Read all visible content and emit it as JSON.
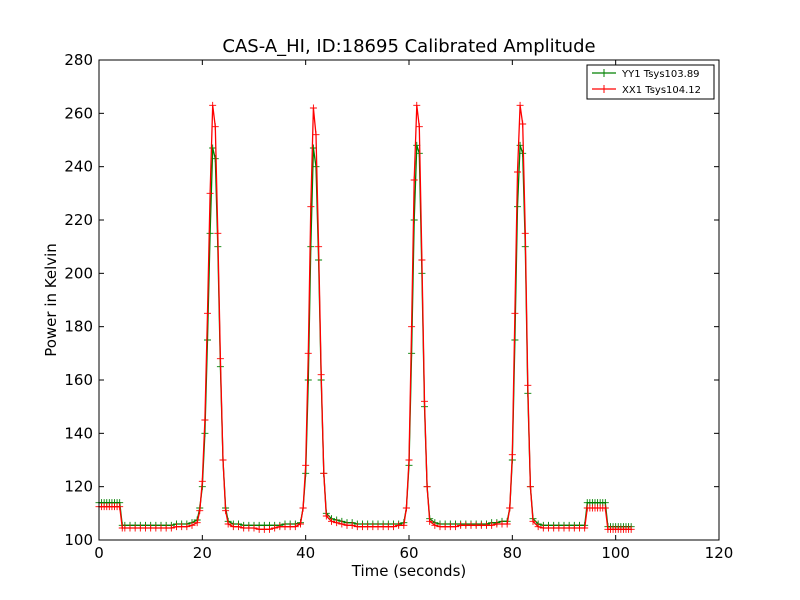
{
  "chart_data": {
    "type": "line",
    "title": "CAS-A_HI, ID:18695 Calibrated Amplitude",
    "xlabel": "Time (seconds)",
    "ylabel": "Power in Kelvin",
    "xlim": [
      0,
      120
    ],
    "ylim": [
      100,
      280
    ],
    "xticks": [
      "0",
      "20",
      "40",
      "60",
      "80",
      "100",
      "120"
    ],
    "yticks": [
      "100",
      "120",
      "140",
      "160",
      "180",
      "200",
      "220",
      "240",
      "260",
      "280"
    ],
    "grid": false,
    "legend_position": "top-right",
    "series": [
      {
        "name": "YY1 Tsys103.89",
        "color": "#008000",
        "marker": "plus",
        "points": [
          [
            0.0,
            114
          ],
          [
            0.5,
            114
          ],
          [
            1.0,
            114
          ],
          [
            1.5,
            114
          ],
          [
            2.0,
            114
          ],
          [
            2.5,
            114
          ],
          [
            3.0,
            114
          ],
          [
            3.5,
            114
          ],
          [
            4.0,
            114
          ],
          [
            4.5,
            105.5
          ],
          [
            5,
            105.5
          ],
          [
            6,
            105.5
          ],
          [
            7,
            105.5
          ],
          [
            8,
            105.5
          ],
          [
            9,
            105.5
          ],
          [
            10,
            105.5
          ],
          [
            11,
            105.5
          ],
          [
            12,
            105.5
          ],
          [
            13,
            105.5
          ],
          [
            14,
            105.5
          ],
          [
            15,
            106
          ],
          [
            16,
            106
          ],
          [
            17,
            106
          ],
          [
            18,
            106.5
          ],
          [
            19,
            107.5
          ],
          [
            19.5,
            112
          ],
          [
            20,
            120
          ],
          [
            20.5,
            140
          ],
          [
            21,
            175
          ],
          [
            21.5,
            215
          ],
          [
            22,
            247
          ],
          [
            22.5,
            243
          ],
          [
            23,
            210
          ],
          [
            23.5,
            165
          ],
          [
            24,
            130
          ],
          [
            24.5,
            112
          ],
          [
            25,
            107
          ],
          [
            26,
            106
          ],
          [
            27,
            106
          ],
          [
            28,
            105.5
          ],
          [
            29,
            105.5
          ],
          [
            30,
            105.5
          ],
          [
            31,
            105.5
          ],
          [
            32,
            105.5
          ],
          [
            33,
            105.5
          ],
          [
            34,
            105.5
          ],
          [
            35,
            105.5
          ],
          [
            36,
            106
          ],
          [
            37,
            106
          ],
          [
            38,
            106
          ],
          [
            39,
            106.5
          ],
          [
            39.5,
            112
          ],
          [
            40,
            125
          ],
          [
            40.5,
            160
          ],
          [
            41,
            210
          ],
          [
            41.5,
            247
          ],
          [
            42,
            240
          ],
          [
            42.5,
            205
          ],
          [
            43,
            160
          ],
          [
            43.5,
            125
          ],
          [
            44,
            110
          ],
          [
            45,
            108
          ],
          [
            46,
            107.5
          ],
          [
            47,
            107
          ],
          [
            48,
            106.5
          ],
          [
            49,
            106.5
          ],
          [
            50,
            106
          ],
          [
            51,
            106
          ],
          [
            52,
            106
          ],
          [
            53,
            106
          ],
          [
            54,
            106
          ],
          [
            55,
            106
          ],
          [
            56,
            106
          ],
          [
            57,
            106
          ],
          [
            58,
            106
          ],
          [
            59,
            106.5
          ],
          [
            59.5,
            112
          ],
          [
            60,
            128
          ],
          [
            60.5,
            170
          ],
          [
            61,
            220
          ],
          [
            61.5,
            248
          ],
          [
            62,
            245
          ],
          [
            62.5,
            200
          ],
          [
            63,
            150
          ],
          [
            63.5,
            120
          ],
          [
            64,
            108
          ],
          [
            65,
            106.5
          ],
          [
            66,
            106
          ],
          [
            67,
            106
          ],
          [
            68,
            106
          ],
          [
            69,
            106
          ],
          [
            70,
            106
          ],
          [
            71,
            106
          ],
          [
            72,
            106
          ],
          [
            73,
            106
          ],
          [
            74,
            106
          ],
          [
            75,
            106
          ],
          [
            76,
            106.5
          ],
          [
            77,
            106.5
          ],
          [
            78,
            107
          ],
          [
            79,
            107
          ],
          [
            79.5,
            112
          ],
          [
            80,
            130
          ],
          [
            80.5,
            175
          ],
          [
            81,
            225
          ],
          [
            81.5,
            248
          ],
          [
            82,
            245
          ],
          [
            82.5,
            210
          ],
          [
            83,
            155
          ],
          [
            83.5,
            120
          ],
          [
            84,
            108
          ],
          [
            85,
            106
          ],
          [
            86,
            105.5
          ],
          [
            87,
            105.5
          ],
          [
            88,
            105.5
          ],
          [
            89,
            105.5
          ],
          [
            90,
            105.5
          ],
          [
            91,
            105.5
          ],
          [
            92,
            105.5
          ],
          [
            93,
            105.5
          ],
          [
            94,
            105.5
          ],
          [
            94.5,
            114
          ],
          [
            95,
            114
          ],
          [
            95.5,
            114
          ],
          [
            96,
            114
          ],
          [
            96.5,
            114
          ],
          [
            97,
            114
          ],
          [
            97.5,
            114
          ],
          [
            98,
            114
          ],
          [
            98.5,
            105
          ],
          [
            99,
            105
          ],
          [
            99.5,
            105
          ],
          [
            100,
            105
          ],
          [
            100.5,
            105
          ],
          [
            101,
            105
          ],
          [
            101.5,
            105
          ],
          [
            102,
            105
          ],
          [
            102.5,
            105
          ],
          [
            103,
            105
          ]
        ]
      },
      {
        "name": "XX1 Tsys104.12",
        "color": "#ff0000",
        "marker": "plus",
        "points": [
          [
            0.0,
            112.5
          ],
          [
            0.5,
            112.5
          ],
          [
            1.0,
            112.5
          ],
          [
            1.5,
            112.5
          ],
          [
            2.0,
            112.5
          ],
          [
            2.5,
            112.5
          ],
          [
            3.0,
            112.5
          ],
          [
            3.5,
            112.5
          ],
          [
            4.0,
            112.5
          ],
          [
            4.5,
            104.5
          ],
          [
            5,
            104.5
          ],
          [
            6,
            104.5
          ],
          [
            7,
            104.5
          ],
          [
            8,
            104.5
          ],
          [
            9,
            104.5
          ],
          [
            10,
            104.5
          ],
          [
            11,
            104.5
          ],
          [
            12,
            104.5
          ],
          [
            13,
            104.5
          ],
          [
            14,
            104.5
          ],
          [
            15,
            105
          ],
          [
            16,
            105
          ],
          [
            17,
            105
          ],
          [
            18,
            105.5
          ],
          [
            19,
            106.5
          ],
          [
            19.5,
            111
          ],
          [
            20,
            122
          ],
          [
            20.5,
            145
          ],
          [
            21,
            185
          ],
          [
            21.5,
            230
          ],
          [
            22,
            263
          ],
          [
            22.5,
            255
          ],
          [
            23,
            215
          ],
          [
            23.5,
            168
          ],
          [
            24,
            130
          ],
          [
            24.5,
            111
          ],
          [
            25,
            106
          ],
          [
            26,
            105
          ],
          [
            27,
            105
          ],
          [
            28,
            104.5
          ],
          [
            29,
            104.5
          ],
          [
            30,
            104.5
          ],
          [
            31,
            104
          ],
          [
            32,
            104
          ],
          [
            33,
            104
          ],
          [
            34,
            104.5
          ],
          [
            35,
            105
          ],
          [
            36,
            105
          ],
          [
            37,
            105
          ],
          [
            38,
            105
          ],
          [
            39,
            106
          ],
          [
            39.5,
            112
          ],
          [
            40,
            128
          ],
          [
            40.5,
            170
          ],
          [
            41,
            225
          ],
          [
            41.5,
            262
          ],
          [
            42,
            252
          ],
          [
            42.5,
            210
          ],
          [
            43,
            162
          ],
          [
            43.5,
            125
          ],
          [
            44,
            109
          ],
          [
            45,
            107
          ],
          [
            46,
            106.5
          ],
          [
            47,
            106
          ],
          [
            48,
            105.5
          ],
          [
            49,
            105.5
          ],
          [
            50,
            105
          ],
          [
            51,
            105
          ],
          [
            52,
            105
          ],
          [
            53,
            105
          ],
          [
            54,
            105
          ],
          [
            55,
            105
          ],
          [
            56,
            105
          ],
          [
            57,
            105
          ],
          [
            58,
            105.5
          ],
          [
            59,
            105.5
          ],
          [
            59.5,
            112
          ],
          [
            60,
            130
          ],
          [
            60.5,
            180
          ],
          [
            61,
            235
          ],
          [
            61.5,
            263
          ],
          [
            62,
            255
          ],
          [
            62.5,
            205
          ],
          [
            63,
            152
          ],
          [
            63.5,
            120
          ],
          [
            64,
            107
          ],
          [
            65,
            105.5
          ],
          [
            66,
            105
          ],
          [
            67,
            105
          ],
          [
            68,
            105
          ],
          [
            69,
            105
          ],
          [
            70,
            105.5
          ],
          [
            71,
            105.5
          ],
          [
            72,
            105.5
          ],
          [
            73,
            105.5
          ],
          [
            74,
            105.5
          ],
          [
            75,
            105.5
          ],
          [
            76,
            105.5
          ],
          [
            77,
            106
          ],
          [
            78,
            106
          ],
          [
            79,
            106
          ],
          [
            79.5,
            112
          ],
          [
            80,
            132
          ],
          [
            80.5,
            185
          ],
          [
            81,
            238
          ],
          [
            81.5,
            263
          ],
          [
            82,
            256
          ],
          [
            82.5,
            215
          ],
          [
            83,
            158
          ],
          [
            83.5,
            120
          ],
          [
            84,
            107
          ],
          [
            85,
            105
          ],
          [
            86,
            104.5
          ],
          [
            87,
            104.5
          ],
          [
            88,
            104.5
          ],
          [
            89,
            104.5
          ],
          [
            90,
            104.5
          ],
          [
            91,
            104.5
          ],
          [
            92,
            104.5
          ],
          [
            93,
            104.5
          ],
          [
            94,
            104.5
          ],
          [
            94.5,
            112
          ],
          [
            95,
            112
          ],
          [
            95.5,
            112
          ],
          [
            96,
            112
          ],
          [
            96.5,
            112
          ],
          [
            97,
            112
          ],
          [
            97.5,
            112
          ],
          [
            98,
            112
          ],
          [
            98.5,
            104
          ],
          [
            99,
            104
          ],
          [
            99.5,
            104
          ],
          [
            100,
            104
          ],
          [
            100.5,
            104
          ],
          [
            101,
            104
          ],
          [
            101.5,
            104
          ],
          [
            102,
            104
          ],
          [
            102.5,
            104
          ],
          [
            103,
            104
          ]
        ]
      }
    ]
  }
}
